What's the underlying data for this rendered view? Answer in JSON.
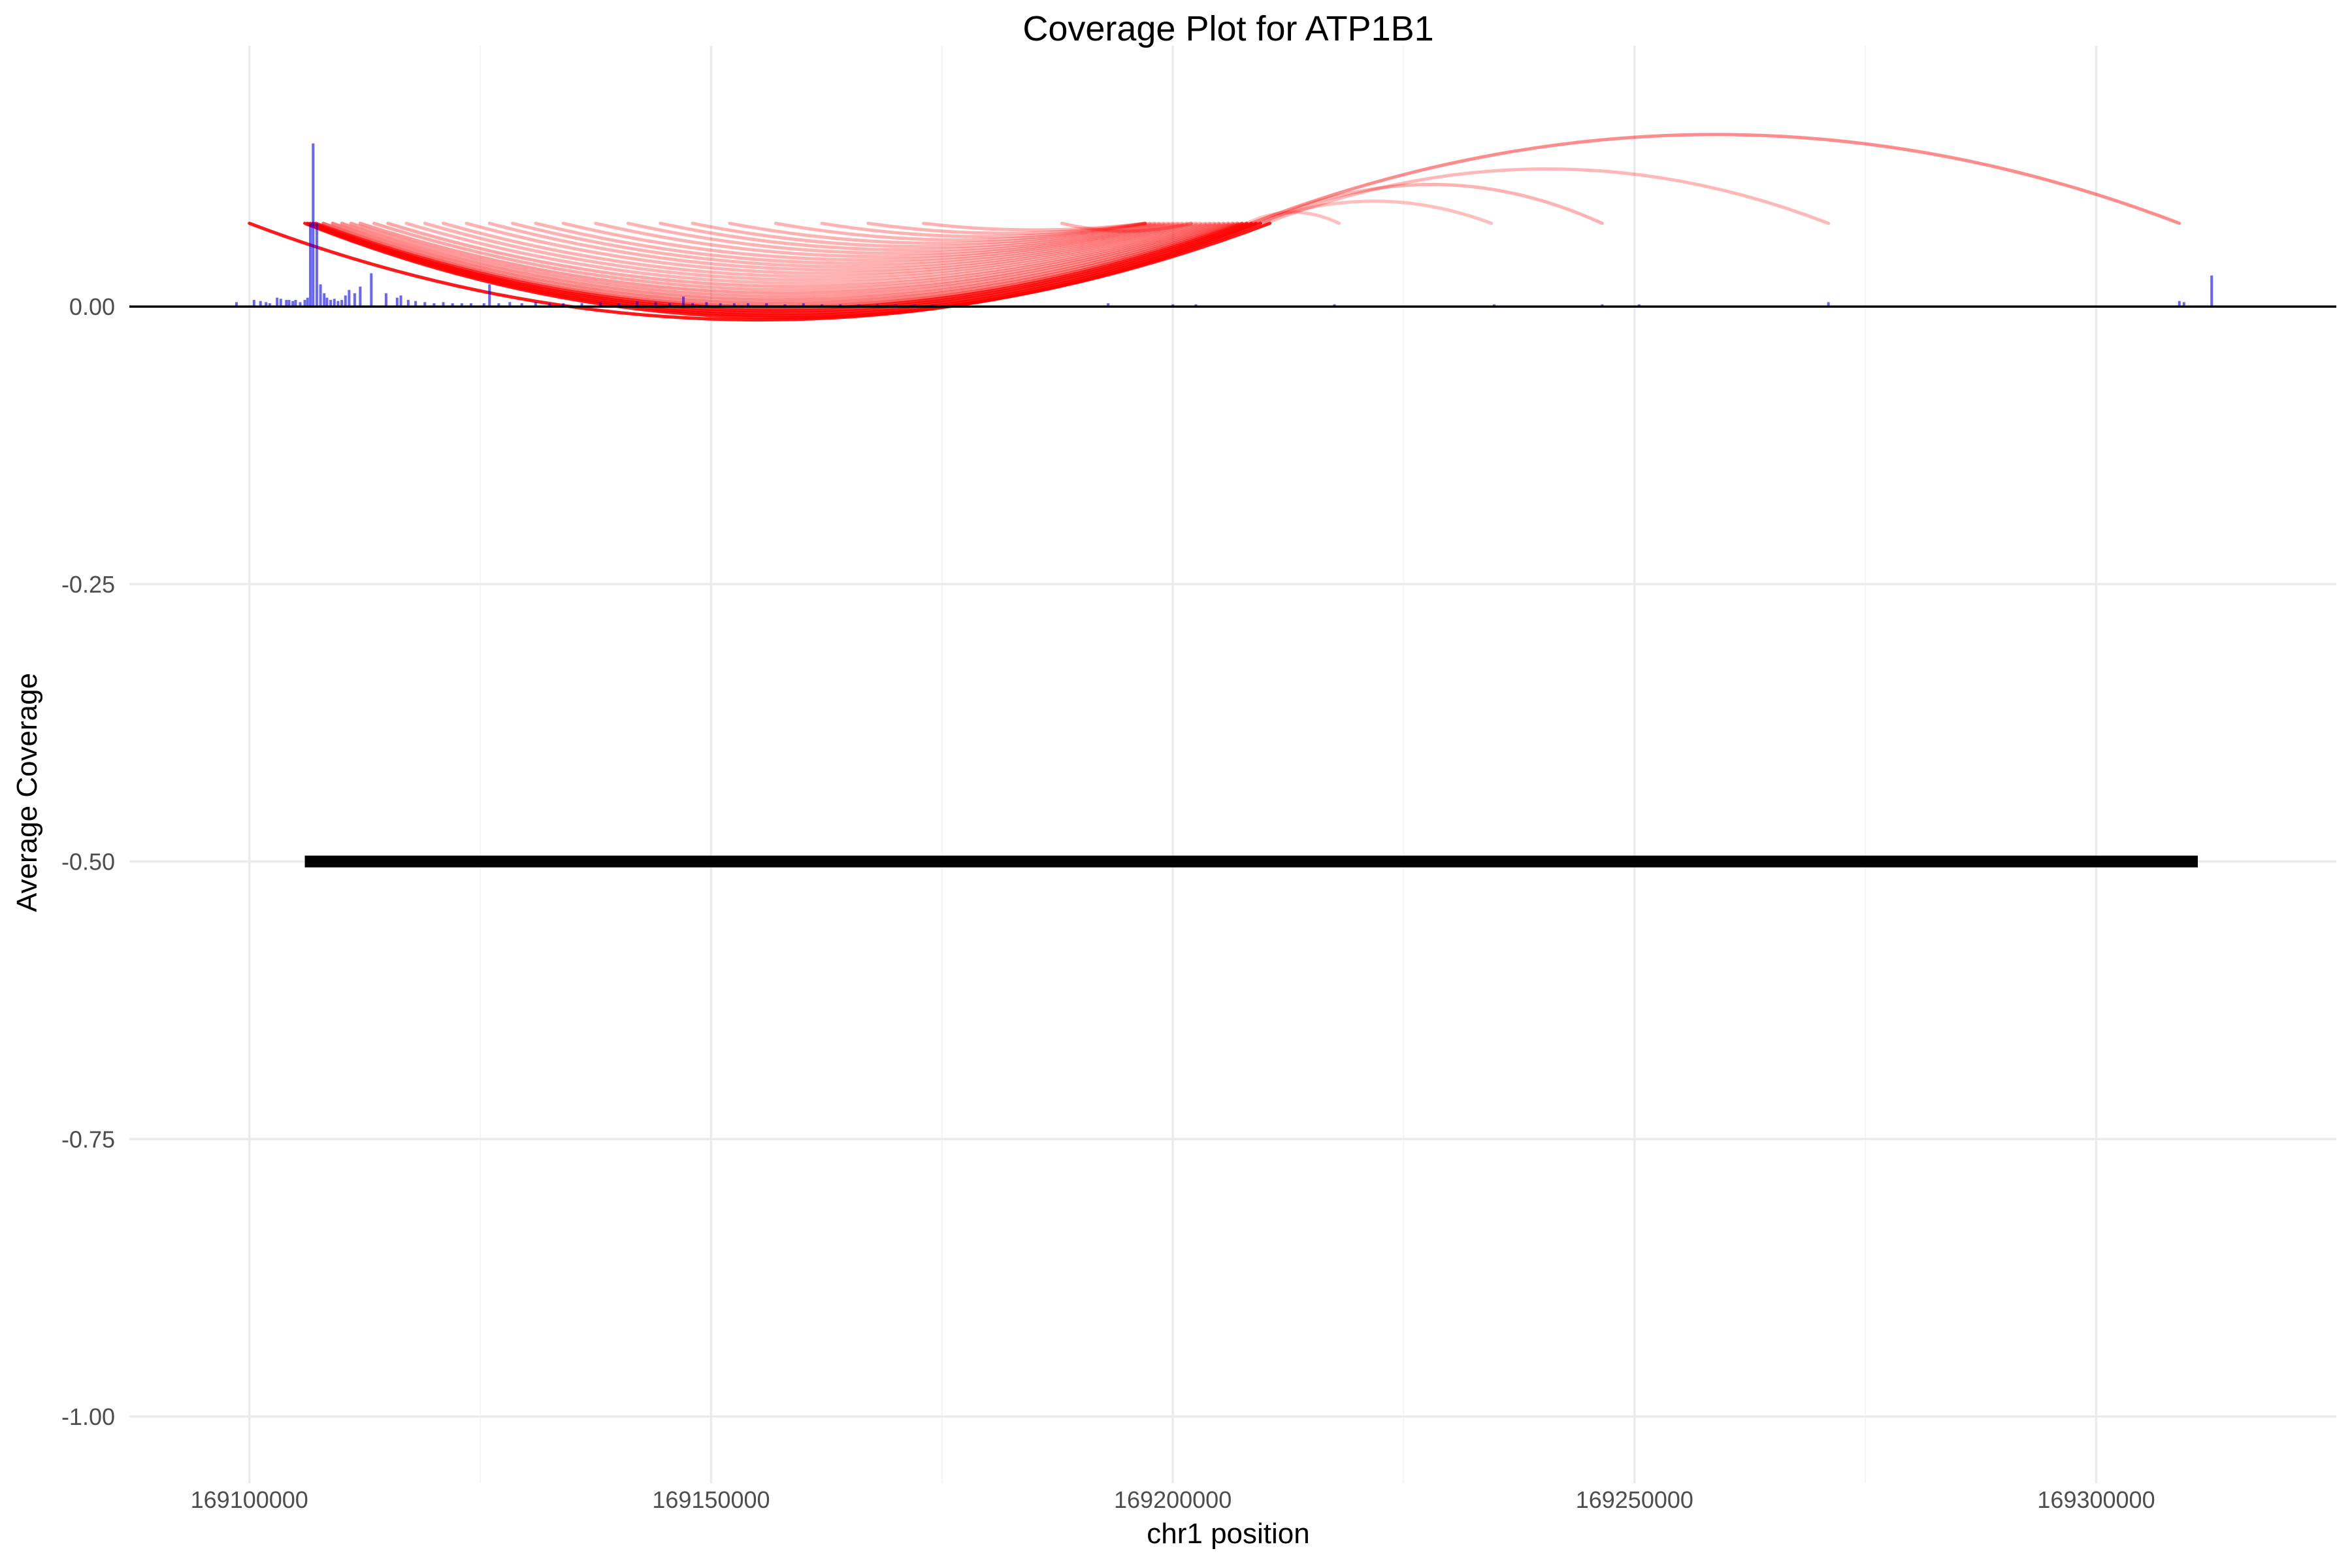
{
  "chart_data": {
    "type": "line",
    "title": "Coverage Plot for ATP1B1",
    "xlabel": "chr1 position",
    "ylabel": "Average Coverage",
    "xlim": [
      169087000,
      169326000
    ],
    "ylim": [
      -1.06,
      0.235
    ],
    "x_ticks": [
      169100000,
      169150000,
      169200000,
      169250000,
      169300000
    ],
    "x_tick_labels": [
      "169100000",
      "169150000",
      "169200000",
      "169250000",
      "169300000"
    ],
    "y_ticks": [
      0.0,
      -0.25,
      -0.5,
      -0.75,
      -1.0
    ],
    "y_tick_labels": [
      "0.00",
      "-0.25",
      "-0.50",
      "-0.75",
      "-1.00"
    ],
    "grid": true,
    "colors": {
      "coverage": "#0000ff",
      "junction": "#ff0000",
      "gene": "#000000",
      "baseline": "#000000",
      "grid": "#ebebeb"
    },
    "baseline_y": 0.0,
    "coverage": {
      "name": "coverage",
      "x": [
        169098600,
        169100500,
        169101200,
        169101800,
        169102200,
        169103000,
        169103400,
        169104000,
        169104300,
        169104700,
        169105000,
        169105500,
        169106000,
        169106300,
        169106600,
        169106900,
        169107300,
        169107700,
        169108100,
        169108400,
        169108800,
        169109200,
        169109600,
        169110000,
        169110400,
        169110800,
        169111400,
        169112000,
        169113200,
        169114800,
        169116000,
        169116400,
        169117200,
        169118000,
        169119000,
        169120000,
        169121000,
        169122000,
        169123000,
        169124000,
        169125400,
        169126000,
        169127000,
        169128200,
        169129500,
        169131000,
        169132500,
        169134000,
        169136000,
        169138000,
        169140000,
        169142000,
        169144000,
        169145500,
        169147000,
        169148000,
        169149500,
        169151000,
        169152500,
        169154000,
        169156000,
        169158000,
        169160000,
        169162000,
        169164000,
        169166000,
        169168000,
        169170000,
        169172000,
        169174000,
        169193000,
        169200000,
        169202500,
        169217500,
        169234800,
        169246500,
        169250500,
        169271000,
        169309000,
        169309500,
        169312500
      ],
      "values": [
        0.004,
        0.006,
        0.005,
        0.004,
        0.003,
        0.008,
        0.007,
        0.006,
        0.006,
        0.005,
        0.006,
        0.004,
        0.006,
        0.008,
        0.075,
        0.147,
        0.075,
        0.02,
        0.012,
        0.008,
        0.006,
        0.007,
        0.005,
        0.006,
        0.01,
        0.015,
        0.012,
        0.018,
        0.03,
        0.012,
        0.008,
        0.01,
        0.006,
        0.005,
        0.004,
        0.003,
        0.004,
        0.003,
        0.003,
        0.003,
        0.003,
        0.02,
        0.003,
        0.004,
        0.003,
        0.004,
        0.003,
        0.003,
        0.003,
        0.004,
        0.003,
        0.005,
        0.004,
        0.003,
        0.009,
        0.003,
        0.004,
        0.003,
        0.003,
        0.003,
        0.003,
        0.002,
        0.003,
        0.002,
        0.002,
        0.002,
        0.002,
        0.002,
        0.002,
        0.002,
        0.003,
        0.002,
        0.002,
        0.002,
        0.002,
        0.002,
        0.002,
        0.004,
        0.005,
        0.004,
        0.028
      ]
    },
    "junctions": [
      {
        "start": 169100000,
        "end": 169210500,
        "start_y": 0.075,
        "end_y": 0.075,
        "dip_y": -0.012,
        "opacity": 0.9
      },
      {
        "start": 169106000,
        "end": 169209500,
        "start_y": 0.075,
        "end_y": 0.075,
        "dip_y": -0.01,
        "opacity": 0.9
      },
      {
        "start": 169106300,
        "end": 169209000,
        "start_y": 0.075,
        "end_y": 0.075,
        "dip_y": -0.008,
        "opacity": 0.9
      },
      {
        "start": 169106600,
        "end": 169208500,
        "start_y": 0.075,
        "end_y": 0.075,
        "dip_y": -0.006,
        "opacity": 0.85
      },
      {
        "start": 169106900,
        "end": 169208000,
        "start_y": 0.075,
        "end_y": 0.075,
        "dip_y": -0.004,
        "opacity": 0.85
      },
      {
        "start": 169107200,
        "end": 169207500,
        "start_y": 0.075,
        "end_y": 0.075,
        "dip_y": -0.002,
        "opacity": 0.8
      },
      {
        "start": 169108000,
        "end": 169207000,
        "start_y": 0.075,
        "end_y": 0.075,
        "dip_y": 0.0,
        "opacity": 0.6
      },
      {
        "start": 169109000,
        "end": 169206500,
        "start_y": 0.075,
        "end_y": 0.075,
        "dip_y": 0.003,
        "opacity": 0.5
      },
      {
        "start": 169110000,
        "end": 169206000,
        "start_y": 0.075,
        "end_y": 0.075,
        "dip_y": 0.006,
        "opacity": 0.45
      },
      {
        "start": 169111000,
        "end": 169205500,
        "start_y": 0.075,
        "end_y": 0.075,
        "dip_y": 0.009,
        "opacity": 0.4
      },
      {
        "start": 169112000,
        "end": 169205000,
        "start_y": 0.075,
        "end_y": 0.075,
        "dip_y": 0.012,
        "opacity": 0.4
      },
      {
        "start": 169113500,
        "end": 169204500,
        "start_y": 0.075,
        "end_y": 0.075,
        "dip_y": 0.015,
        "opacity": 0.35
      },
      {
        "start": 169115000,
        "end": 169204000,
        "start_y": 0.075,
        "end_y": 0.075,
        "dip_y": 0.018,
        "opacity": 0.35
      },
      {
        "start": 169117000,
        "end": 169203500,
        "start_y": 0.075,
        "end_y": 0.075,
        "dip_y": 0.021,
        "opacity": 0.3
      },
      {
        "start": 169119000,
        "end": 169203000,
        "start_y": 0.075,
        "end_y": 0.075,
        "dip_y": 0.024,
        "opacity": 0.3
      },
      {
        "start": 169121000,
        "end": 169202500,
        "start_y": 0.075,
        "end_y": 0.075,
        "dip_y": 0.027,
        "opacity": 0.3
      },
      {
        "start": 169123500,
        "end": 169202000,
        "start_y": 0.075,
        "end_y": 0.075,
        "dip_y": 0.03,
        "opacity": 0.3
      },
      {
        "start": 169126000,
        "end": 169201500,
        "start_y": 0.075,
        "end_y": 0.075,
        "dip_y": 0.033,
        "opacity": 0.3
      },
      {
        "start": 169128500,
        "end": 169201000,
        "start_y": 0.075,
        "end_y": 0.075,
        "dip_y": 0.036,
        "opacity": 0.3
      },
      {
        "start": 169131000,
        "end": 169200500,
        "start_y": 0.075,
        "end_y": 0.075,
        "dip_y": 0.039,
        "opacity": 0.3
      },
      {
        "start": 169134000,
        "end": 169200000,
        "start_y": 0.075,
        "end_y": 0.075,
        "dip_y": 0.042,
        "opacity": 0.3
      },
      {
        "start": 169137500,
        "end": 169199500,
        "start_y": 0.075,
        "end_y": 0.075,
        "dip_y": 0.045,
        "opacity": 0.3
      },
      {
        "start": 169141000,
        "end": 169199000,
        "start_y": 0.075,
        "end_y": 0.075,
        "dip_y": 0.048,
        "opacity": 0.3
      },
      {
        "start": 169144500,
        "end": 169198500,
        "start_y": 0.075,
        "end_y": 0.075,
        "dip_y": 0.051,
        "opacity": 0.3
      },
      {
        "start": 169148000,
        "end": 169198000,
        "start_y": 0.075,
        "end_y": 0.075,
        "dip_y": 0.054,
        "opacity": 0.3
      },
      {
        "start": 169152000,
        "end": 169197500,
        "start_y": 0.075,
        "end_y": 0.075,
        "dip_y": 0.057,
        "opacity": 0.3
      },
      {
        "start": 169157000,
        "end": 169197000,
        "start_y": 0.075,
        "end_y": 0.075,
        "dip_y": 0.06,
        "opacity": 0.3
      },
      {
        "start": 169162000,
        "end": 169197000,
        "start_y": 0.075,
        "end_y": 0.075,
        "dip_y": 0.063,
        "opacity": 0.3
      },
      {
        "start": 169167000,
        "end": 169197000,
        "start_y": 0.075,
        "end_y": 0.075,
        "dip_y": 0.066,
        "opacity": 0.3
      },
      {
        "start": 169173000,
        "end": 169197000,
        "start_y": 0.075,
        "end_y": 0.075,
        "dip_y": 0.069,
        "opacity": 0.3
      },
      {
        "start": 169188000,
        "end": 169202000,
        "start_y": 0.075,
        "end_y": 0.075,
        "dip_y": 0.068,
        "opacity": 0.3
      },
      {
        "start": 169209000,
        "end": 169234500,
        "start_y": 0.075,
        "end_y": 0.075,
        "peak_y": 0.095,
        "opacity": 0.25
      },
      {
        "start": 169209500,
        "end": 169246500,
        "start_y": 0.075,
        "end_y": 0.075,
        "peak_y": 0.11,
        "opacity": 0.3
      },
      {
        "start": 169210000,
        "end": 169271000,
        "start_y": 0.075,
        "end_y": 0.075,
        "peak_y": 0.124,
        "opacity": 0.28
      },
      {
        "start": 169208000,
        "end": 169218000,
        "start_y": 0.075,
        "end_y": 0.075,
        "peak_y": 0.085,
        "opacity": 0.25
      },
      {
        "start": 169208500,
        "end": 169309000,
        "start_y": 0.075,
        "end_y": 0.075,
        "peak_y": 0.155,
        "opacity": 0.45
      }
    ],
    "gene": {
      "start": 169106000,
      "end": 169311000,
      "y": -0.5
    }
  }
}
